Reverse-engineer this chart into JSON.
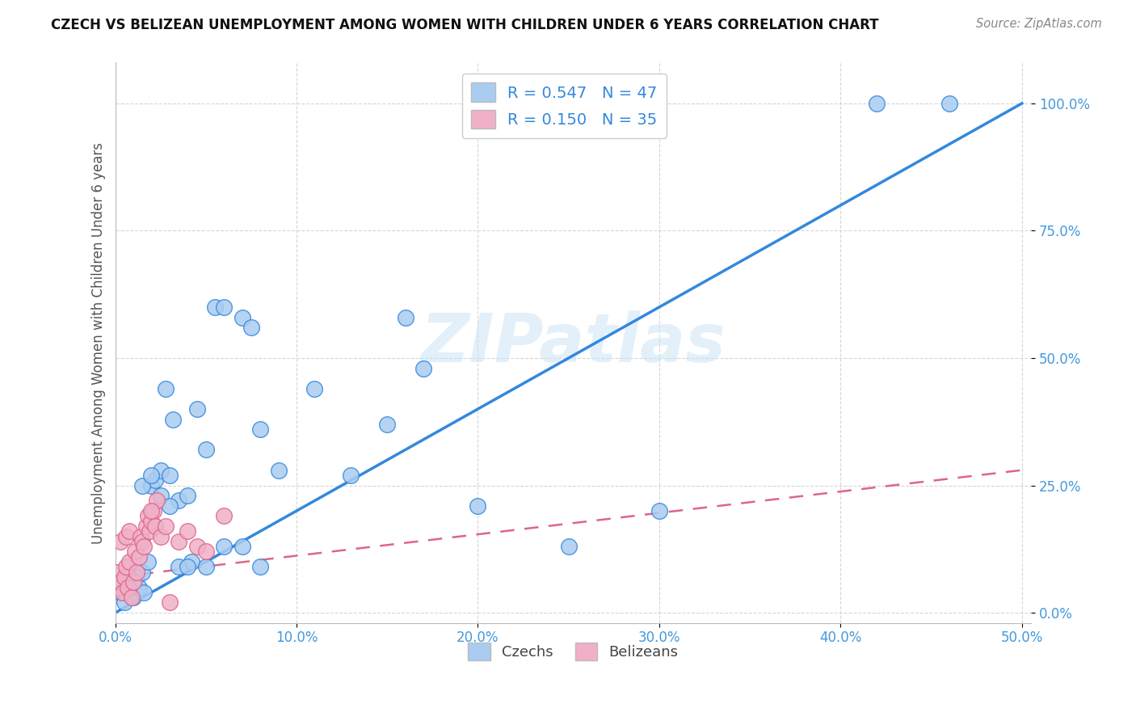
{
  "title": "CZECH VS BELIZEAN UNEMPLOYMENT AMONG WOMEN WITH CHILDREN UNDER 6 YEARS CORRELATION CHART",
  "source": "Source: ZipAtlas.com",
  "ylabel": "Unemployment Among Women with Children Under 6 years",
  "watermark": "ZIPatlas",
  "czech_color": "#aaccf0",
  "belizean_color": "#f0b0c8",
  "trend_czech_color": "#3388dd",
  "trend_belizean_color": "#dd6688",
  "xlim": [
    0.0,
    0.505
  ],
  "ylim": [
    -0.02,
    1.08
  ],
  "xtick_vals": [
    0.0,
    0.1,
    0.2,
    0.3,
    0.4,
    0.5
  ],
  "ytick_vals": [
    0.0,
    0.25,
    0.5,
    0.75,
    1.0
  ],
  "czechs_x": [
    0.003,
    0.005,
    0.007,
    0.009,
    0.01,
    0.012,
    0.013,
    0.015,
    0.016,
    0.018,
    0.02,
    0.022,
    0.025,
    0.028,
    0.03,
    0.032,
    0.035,
    0.04,
    0.042,
    0.045,
    0.05,
    0.055,
    0.06,
    0.07,
    0.075,
    0.08,
    0.09,
    0.11,
    0.13,
    0.15,
    0.17,
    0.2,
    0.25,
    0.3,
    0.16,
    0.42,
    0.46,
    0.015,
    0.02,
    0.025,
    0.03,
    0.035,
    0.04,
    0.05,
    0.06,
    0.07,
    0.08
  ],
  "czechs_y": [
    0.04,
    0.02,
    0.05,
    0.06,
    0.03,
    0.07,
    0.05,
    0.08,
    0.04,
    0.1,
    0.25,
    0.26,
    0.28,
    0.44,
    0.27,
    0.38,
    0.22,
    0.23,
    0.1,
    0.4,
    0.32,
    0.6,
    0.6,
    0.58,
    0.56,
    0.36,
    0.28,
    0.44,
    0.27,
    0.37,
    0.48,
    0.21,
    0.13,
    0.2,
    0.58,
    1.0,
    1.0,
    0.25,
    0.27,
    0.23,
    0.21,
    0.09,
    0.09,
    0.09,
    0.13,
    0.13,
    0.09
  ],
  "belizeans_x": [
    0.001,
    0.002,
    0.003,
    0.003,
    0.004,
    0.005,
    0.006,
    0.006,
    0.007,
    0.008,
    0.008,
    0.009,
    0.01,
    0.011,
    0.012,
    0.013,
    0.014,
    0.015,
    0.016,
    0.017,
    0.018,
    0.019,
    0.02,
    0.021,
    0.022,
    0.023,
    0.025,
    0.028,
    0.03,
    0.035,
    0.04,
    0.045,
    0.05,
    0.06,
    0.02
  ],
  "belizeans_y": [
    0.08,
    0.05,
    0.06,
    0.14,
    0.04,
    0.07,
    0.09,
    0.15,
    0.05,
    0.1,
    0.16,
    0.03,
    0.06,
    0.12,
    0.08,
    0.11,
    0.15,
    0.14,
    0.13,
    0.17,
    0.19,
    0.16,
    0.18,
    0.2,
    0.17,
    0.22,
    0.15,
    0.17,
    0.02,
    0.14,
    0.16,
    0.13,
    0.12,
    0.19,
    0.2
  ],
  "czech_trend_x": [
    0.0,
    0.5
  ],
  "czech_trend_y": [
    0.0,
    1.0
  ],
  "belizean_trend_x": [
    0.0,
    0.5
  ],
  "belizean_trend_y": [
    0.07,
    0.28
  ],
  "R_czech": 0.547,
  "N_czech": 47,
  "R_belizean": 0.15,
  "N_belizean": 35
}
